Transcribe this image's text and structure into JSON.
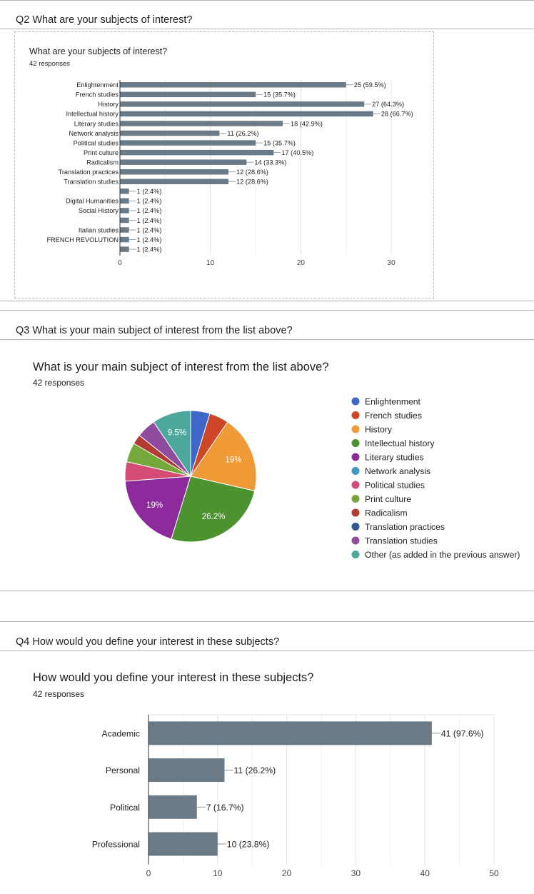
{
  "q2": {
    "heading": "Q2 What are your subjects of interest?",
    "chart_title": "What are your subjects of interest?",
    "responses": "42 responses"
  },
  "q3": {
    "heading": "Q3 What is your main subject of interest from the list above?",
    "chart_title": "What is your main subject of interest from the list above?",
    "responses": "42 responses"
  },
  "q4": {
    "heading": "Q4 How would you define your interest in these subjects?",
    "chart_title": "How would you define your interest in these subjects?",
    "responses": "42 responses"
  },
  "chart_data": [
    {
      "type": "bar",
      "orientation": "horizontal",
      "title": "What are your subjects of interest?",
      "categories": [
        "Enlightenment",
        "French studies",
        "History",
        "Intellectual history",
        "Literary studies",
        "Network analysis",
        "Political studies",
        "Print culture",
        "Radicalism",
        "Translation practices",
        "Translation studies",
        "",
        "Digital Humanities",
        "Social History",
        "",
        "Italian studies",
        "FRENCH REVOLUTION",
        ""
      ],
      "values": [
        25,
        15,
        27,
        28,
        18,
        11,
        15,
        17,
        14,
        12,
        12,
        1,
        1,
        1,
        1,
        1,
        1,
        1
      ],
      "data_labels": [
        "25 (59.5%)",
        "15 (35.7%)",
        "27 (64.3%)",
        "28 (66.7%)",
        "18 (42.9%)",
        "11 (26.2%)",
        "15 (35.7%)",
        "17 (40.5%)",
        "14 (33.3%)",
        "12 (28.6%)",
        "12 (28.6%)",
        "1 (2.4%)",
        "1 (2.4%)",
        "1 (2.4%)",
        "1 (2.4%)",
        "1 (2.4%)",
        "1 (2.4%)",
        "1 (2.4%)"
      ],
      "xlim": [
        0,
        30
      ],
      "xticks": [
        "0",
        "10",
        "20",
        "30"
      ],
      "grid": true,
      "bar_color": "#6a7b87"
    },
    {
      "type": "pie",
      "title": "What is your main subject of interest from the list above?",
      "categories": [
        "Enlightenment",
        "French studies",
        "History",
        "Intellectual history",
        "Literary studies",
        "Network analysis",
        "Political studies",
        "Print culture",
        "Radicalism",
        "Translation practices",
        "Translation studies",
        "Other (as added in the previous answer)"
      ],
      "values": [
        2,
        2,
        8,
        11,
        8,
        0,
        2,
        2,
        1,
        0,
        2,
        4
      ],
      "slice_labels": [
        "",
        "",
        "19%",
        "26.2%",
        "19%",
        "",
        "",
        "",
        "",
        "",
        "",
        "9.5%"
      ],
      "colors": [
        "#3f67c9",
        "#cf4627",
        "#f09a37",
        "#4c922e",
        "#8d2a9c",
        "#3b98c6",
        "#d44c76",
        "#75a83a",
        "#b13a31",
        "#32598f",
        "#8f4b9e",
        "#4ea79d"
      ],
      "legend_position": "right"
    },
    {
      "type": "bar",
      "orientation": "horizontal",
      "title": "How would you define your interest in these subjects?",
      "categories": [
        "Academic",
        "Personal",
        "Political",
        "Professional"
      ],
      "values": [
        41,
        11,
        7,
        10
      ],
      "data_labels": [
        "41 (97.6%)",
        "11 (26.2%)",
        "7 (16.7%)",
        "10 (23.8%)"
      ],
      "xlim": [
        0,
        50
      ],
      "xticks": [
        "0",
        "10",
        "20",
        "30",
        "40",
        "50"
      ],
      "grid": true,
      "bar_color": "#6a7b87"
    }
  ]
}
